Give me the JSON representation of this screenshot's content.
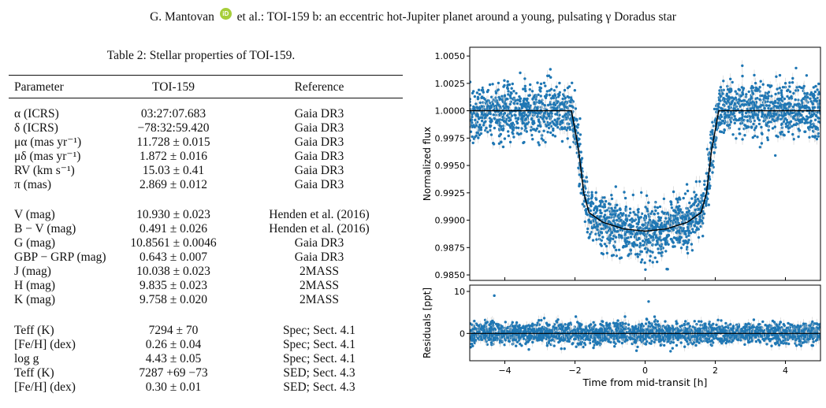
{
  "header": {
    "author": "G. Mantovan",
    "orcid": "iD",
    "rest": "et al.: TOI-159 b: an eccentric hot-Jupiter planet around a young, pulsating γ Doradus star"
  },
  "table": {
    "caption": "Table 2: Stellar properties of TOI-159.",
    "columns": [
      "Parameter",
      "TOI-159",
      "Reference"
    ],
    "rows": [
      {
        "param": "α (ICRS)",
        "value": "03:27:07.683",
        "ref": "Gaia DR3"
      },
      {
        "param": "δ (ICRS)",
        "value": "−78:32:59.420",
        "ref": "Gaia DR3"
      },
      {
        "param": "μα (mas yr⁻¹)",
        "value": "11.728 ± 0.015",
        "ref": "Gaia DR3"
      },
      {
        "param": "μδ (mas yr⁻¹)",
        "value": "1.872 ± 0.016",
        "ref": "Gaia DR3"
      },
      {
        "param": "RV (km s⁻¹)",
        "value": "15.03 ± 0.41",
        "ref": "Gaia DR3"
      },
      {
        "param": "π (mas)",
        "value": "2.869 ± 0.012",
        "ref": "Gaia DR3"
      },
      {
        "param": "V (mag)",
        "value": "10.930 ± 0.023",
        "ref": "Henden et al. (2016)"
      },
      {
        "param": "B − V (mag)",
        "value": "0.491 ± 0.026",
        "ref": "Henden et al. (2016)"
      },
      {
        "param": "G (mag)",
        "value": "10.8561 ± 0.0046",
        "ref": "Gaia DR3"
      },
      {
        "param": "GBP − GRP (mag)",
        "value": "0.643 ± 0.007",
        "ref": "Gaia DR3"
      },
      {
        "param": "J (mag)",
        "value": "10.038 ± 0.023",
        "ref": "2MASS"
      },
      {
        "param": "H (mag)",
        "value": "9.835 ± 0.023",
        "ref": "2MASS"
      },
      {
        "param": "K (mag)",
        "value": "9.758 ± 0.020",
        "ref": "2MASS"
      },
      {
        "param": "Teff (K)",
        "value": "7294 ± 70",
        "ref": "Spec; Sect. 4.1"
      },
      {
        "param": "[Fe/H] (dex)",
        "value": "0.26 ± 0.04",
        "ref": "Spec; Sect. 4.1"
      },
      {
        "param": "log g",
        "value": "4.43 ± 0.05",
        "ref": "Spec; Sect. 4.1"
      },
      {
        "param": "Teff (K)",
        "value": "7287 +69 −73",
        "ref": "SED; Sect. 4.3"
      },
      {
        "param": "[Fe/H] (dex)",
        "value": "0.30 ± 0.01",
        "ref": "SED; Sect. 4.3"
      }
    ]
  },
  "chart_data": [
    {
      "type": "scatter",
      "ylabel": "Normalized flux",
      "xlim": [
        -5,
        5
      ],
      "ylim": [
        0.9845,
        1.0058
      ],
      "yticks": [
        "0.9850",
        "0.9875",
        "0.9900",
        "0.9925",
        "0.9950",
        "0.9975",
        "1.0000",
        "1.0025",
        "1.0050"
      ],
      "point_color": "#1f77b4",
      "model_color": "#000000",
      "model": {
        "x": [
          -5,
          -2.1,
          -1.9,
          -1.75,
          -1.6,
          -1.2,
          -0.6,
          0,
          0.6,
          1.2,
          1.6,
          1.75,
          1.9,
          2.1,
          5
        ],
        "y": [
          1.0,
          1.0,
          0.9965,
          0.9925,
          0.9907,
          0.9898,
          0.9892,
          0.989,
          0.9892,
          0.9898,
          0.9907,
          0.9925,
          0.9965,
          1.0,
          1.0
        ]
      },
      "noise_scatter": 0.0012
    },
    {
      "type": "scatter",
      "xlabel": "Time from mid-transit [h]",
      "ylabel": "Residuals [ppt]",
      "xlim": [
        -5,
        5
      ],
      "ylim": [
        -6.5,
        11.5
      ],
      "yticks": [
        "0",
        "10"
      ],
      "xticks": [
        "−4",
        "−2",
        "0",
        "2",
        "4"
      ],
      "point_color": "#1f77b4",
      "noise_scatter": 1.2
    }
  ]
}
